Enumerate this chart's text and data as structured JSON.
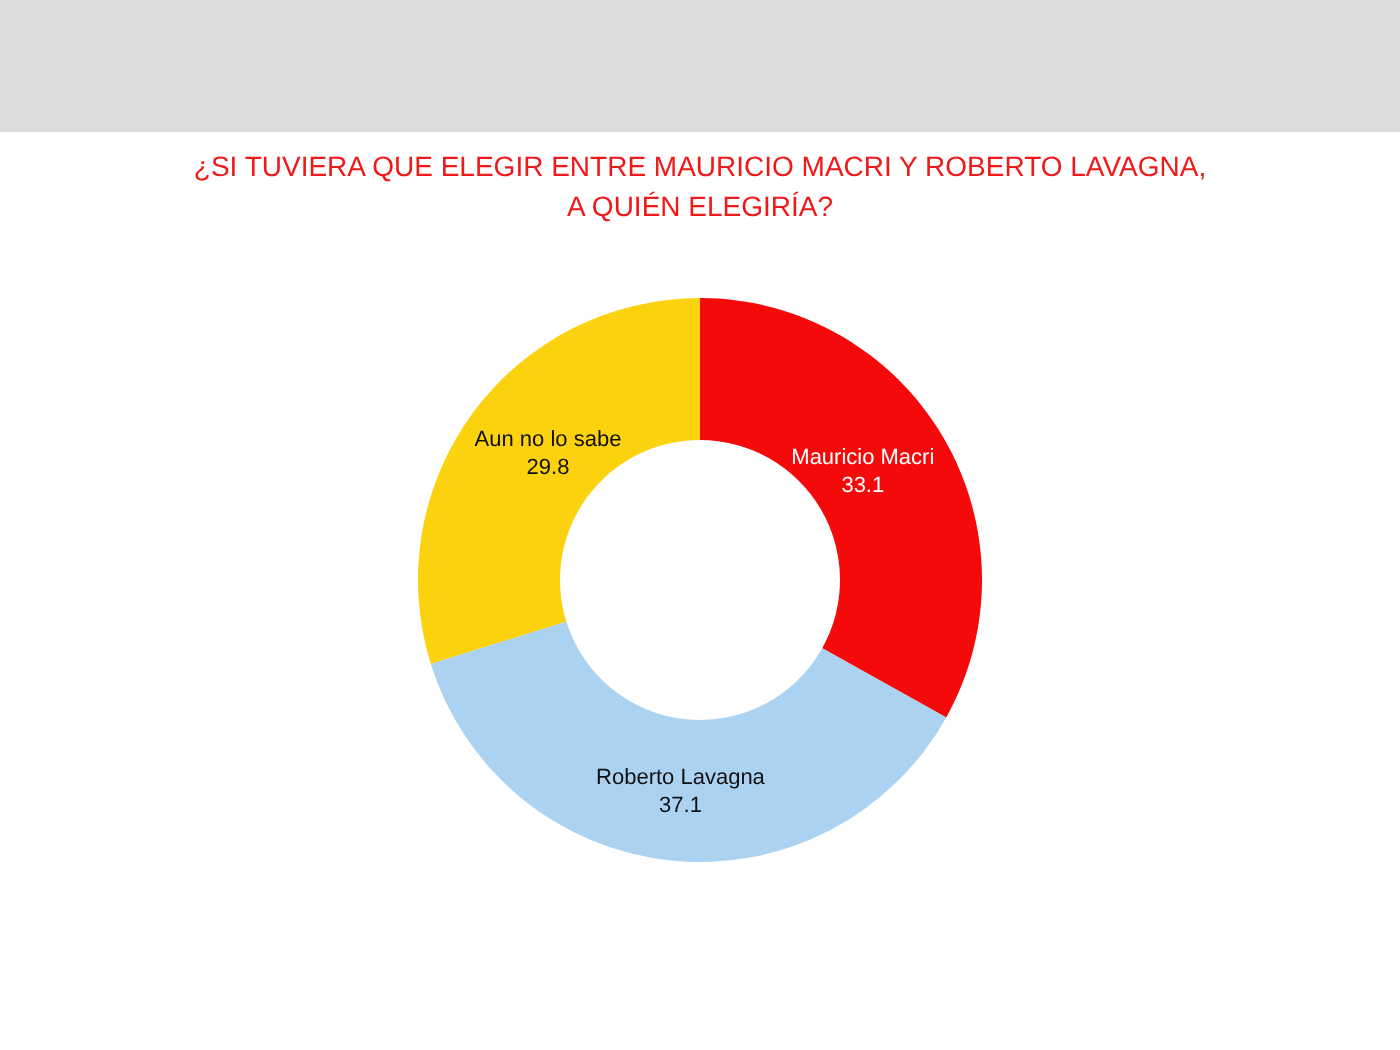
{
  "chart_data": {
    "type": "donut",
    "title": "¿SI TUVIERA QUE ELEGIR ENTRE MAURICIO MACRI Y ROBERTO LAVAGNA,\nA QUIÉN ELEGIRÍA?",
    "categories": [
      "Mauricio Macri",
      "Roberto Lavagna",
      "Aun no lo sabe"
    ],
    "values": [
      33.1,
      37.1,
      29.8
    ],
    "colors": [
      "#f40a0a",
      "#acd2f2",
      "#fcd20e"
    ],
    "data_labels": true,
    "legend": false
  }
}
